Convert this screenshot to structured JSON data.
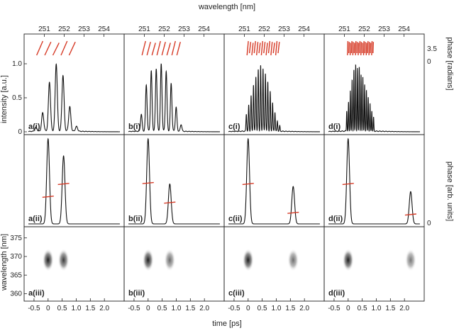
{
  "chart_data": {
    "type": "line",
    "top_axis_label": "wavelength [nm]",
    "top_ticks": [
      251,
      252,
      253,
      254
    ],
    "bottom_axis_label": "time [ps]",
    "bottom_ticks": [
      -0.5,
      0,
      0.5,
      1.0,
      1.5,
      2.0
    ],
    "intensity_label": "intensity [a.u.]",
    "intensity_ticks": [
      0,
      0.5,
      1.0
    ],
    "wavelength_label": "wavelength [nm]",
    "wavelength_ticks": [
      360,
      365,
      370,
      375
    ],
    "phase_radians_label": "phase [radians]",
    "phase_radians_ticks": [
      "3.5",
      "0"
    ],
    "phase_arb_label": "phase [arb. units]",
    "phase_arb_ticks": [
      "0"
    ],
    "panels": [
      {
        "spectrum_label": "a(i)",
        "temporal_label": "a(ii)",
        "spectrogram_label": "a(iii)",
        "fringe_spacing_nm": 0.34,
        "spectral_peaks": [
          [
            250.58,
            0.06
          ],
          [
            250.92,
            0.27
          ],
          [
            251.26,
            0.72
          ],
          [
            251.6,
            0.99
          ],
          [
            251.94,
            0.82
          ],
          [
            252.28,
            0.36
          ],
          [
            252.62,
            0.07
          ]
        ],
        "phase_segments": 5,
        "pulses": [
          {
            "t": 0.0,
            "amp": 1.0,
            "phase": 0.32
          },
          {
            "t": 0.55,
            "amp": 0.8,
            "phase": 0.47
          }
        ]
      },
      {
        "spectrum_label": "b(i)",
        "temporal_label": "b(ii)",
        "spectrogram_label": "b(iii)",
        "fringe_spacing_nm": 0.25,
        "spectral_peaks": [
          [
            250.85,
            0.25
          ],
          [
            251.1,
            0.68
          ],
          [
            251.35,
            0.88
          ],
          [
            251.6,
            0.92
          ],
          [
            251.85,
            0.98
          ],
          [
            252.1,
            0.88
          ],
          [
            252.35,
            0.7
          ],
          [
            252.6,
            0.35
          ],
          [
            252.85,
            0.1
          ]
        ],
        "phase_segments": 8,
        "pulses": [
          {
            "t": 0.0,
            "amp": 1.0,
            "phase": 0.48
          },
          {
            "t": 0.77,
            "amp": 0.47,
            "phase": 0.25
          }
        ]
      },
      {
        "spectrum_label": "c(i)",
        "temporal_label": "c(ii)",
        "spectrogram_label": "c(iii)",
        "fringe_spacing_nm": 0.12,
        "spectral_peaks": [
          [
            251.1,
            0.25
          ],
          [
            251.22,
            0.38
          ],
          [
            251.34,
            0.52
          ],
          [
            251.46,
            0.68
          ],
          [
            251.58,
            0.8
          ],
          [
            251.7,
            0.9
          ],
          [
            251.82,
            0.96
          ],
          [
            251.94,
            0.92
          ],
          [
            252.06,
            0.85
          ],
          [
            252.18,
            0.72
          ],
          [
            252.3,
            0.58
          ],
          [
            252.42,
            0.42
          ],
          [
            252.54,
            0.28
          ],
          [
            252.66,
            0.15
          ],
          [
            252.78,
            0.08
          ]
        ],
        "phase_segments": 14,
        "pulses": [
          {
            "t": 0.0,
            "amp": 1.0,
            "phase": 0.47
          },
          {
            "t": 1.6,
            "amp": 0.44,
            "phase": 0.13
          }
        ]
      },
      {
        "spectrum_label": "d(i)",
        "temporal_label": "d(ii)",
        "spectrogram_label": "d(iii)",
        "fringe_spacing_nm": 0.09,
        "spectral_peaks": [
          [
            251.12,
            0.3
          ],
          [
            251.21,
            0.42
          ],
          [
            251.3,
            0.6
          ],
          [
            251.39,
            0.75
          ],
          [
            251.48,
            0.9
          ],
          [
            251.57,
            0.98
          ],
          [
            251.66,
            0.92
          ],
          [
            251.75,
            0.95
          ],
          [
            251.84,
            0.82
          ],
          [
            251.93,
            0.8
          ],
          [
            252.02,
            0.68
          ],
          [
            252.11,
            0.6
          ],
          [
            252.2,
            0.5
          ],
          [
            252.29,
            0.4
          ],
          [
            252.38,
            0.3
          ],
          [
            252.47,
            0.2
          ]
        ],
        "phase_segments": 20,
        "pulses": [
          {
            "t": 0.0,
            "amp": 1.0,
            "phase": 0.47
          },
          {
            "t": 2.22,
            "amp": 0.38,
            "phase": 0.11
          }
        ]
      }
    ],
    "colors": {
      "trace": "#111111",
      "phase": "#d63a26"
    }
  }
}
